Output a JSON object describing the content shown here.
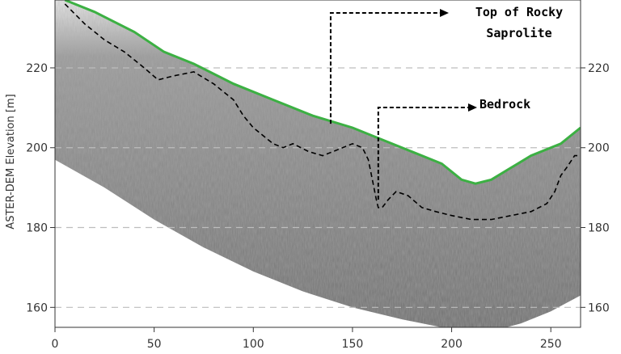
{
  "chart_data": {
    "type": "line",
    "title": "",
    "xlabel": "",
    "ylabel": "ASTER-DEM Elevation [m]",
    "xlim": [
      0,
      265
    ],
    "ylim": [
      155,
      237
    ],
    "x_ticks": [
      0,
      50,
      100,
      150,
      200,
      250
    ],
    "y_ticks": [
      160,
      180,
      200,
      220
    ],
    "y_tick_labels": [
      "160",
      "180",
      "200",
      "220"
    ],
    "grid": "horizontal-dashed",
    "colors": {
      "saprolite": "#3cb043",
      "bedrock": "#000000",
      "radargram": "#7a7a7a"
    },
    "series": [
      {
        "line_style": "solid",
        "color": "#3cb043",
        "x": [
          5,
          20,
          40,
          55,
          70,
          90,
          110,
          130,
          150,
          165,
          180,
          195,
          205,
          212,
          220,
          230,
          240,
          255,
          265
        ],
        "y": [
          237,
          234,
          229,
          224,
          221,
          216,
          212,
          208,
          205,
          202,
          199,
          196,
          192,
          191,
          192,
          195,
          198,
          201,
          205
        ]
      },
      {
        "line_style": "dashed",
        "color": "#000000",
        "x": [
          5,
          15,
          25,
          35,
          45,
          52,
          60,
          70,
          80,
          90,
          95,
          100,
          105,
          110,
          115,
          120,
          128,
          135,
          140,
          145,
          150,
          155,
          158,
          160,
          162,
          163,
          165,
          168,
          172,
          178,
          185,
          192,
          200,
          210,
          220,
          230,
          240,
          248,
          252,
          255,
          258,
          262,
          265
        ],
        "y": [
          236,
          231,
          227,
          224,
          220,
          217,
          218,
          219,
          216,
          212,
          208,
          205,
          203,
          201,
          200,
          201,
          199,
          198,
          199,
          200,
          201,
          200,
          197,
          192,
          187,
          185,
          185,
          187,
          189,
          188,
          185,
          184,
          183,
          182,
          182,
          183,
          184,
          186,
          189,
          193,
          195,
          198,
          198
        ]
      }
    ],
    "annotations": [
      {
        "text_lines": [
          "Top of Rocky",
          "Saprolite"
        ],
        "target_x": 139,
        "target_y": 206
      },
      {
        "text_lines": [
          "Bedrock"
        ],
        "target_x": 163,
        "target_y": 187
      }
    ]
  }
}
